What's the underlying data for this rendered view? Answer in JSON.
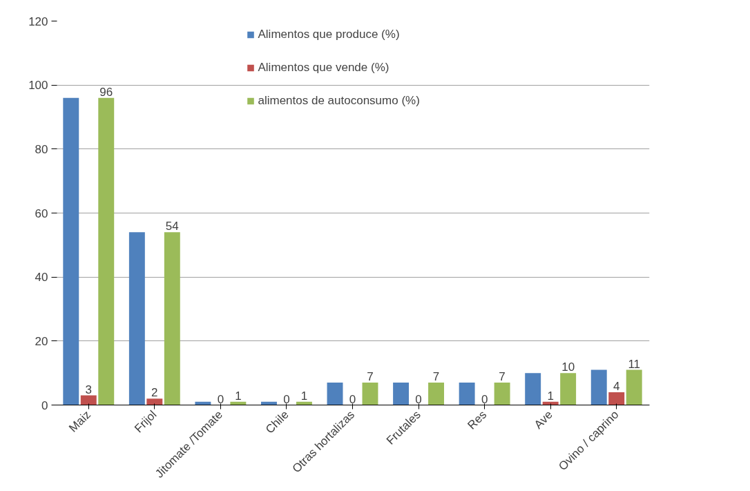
{
  "chart_data": {
    "type": "bar",
    "categories": [
      "Maiz",
      "Frijol",
      "Jitomate /Tomate",
      "Chile",
      "Otras hortalizas",
      "Frutales",
      "Res",
      "Ave",
      "Ovino / caprino"
    ],
    "series": [
      {
        "name": "Alimentos que produce (%)",
        "color": "#4f81bd",
        "values": [
          96,
          54,
          1,
          1,
          7,
          7,
          7,
          10,
          11
        ]
      },
      {
        "name": "Alimentos que vende (%)",
        "color": "#c0504d",
        "values": [
          3,
          2,
          0,
          0,
          0,
          0,
          0,
          1,
          4
        ],
        "value_labels": [
          "3",
          "2",
          "0",
          "0",
          "0",
          "0",
          "0",
          "1",
          "4"
        ]
      },
      {
        "name": "alimentos de autoconsumo (%)",
        "color": "#9bbb59",
        "values": [
          96,
          54,
          1,
          1,
          7,
          7,
          7,
          10,
          11
        ],
        "value_labels": [
          "96",
          "54",
          "1",
          "1",
          "7",
          "7",
          "7",
          "10",
          "11"
        ]
      }
    ],
    "ylim": [
      0,
      120
    ],
    "yticks": [
      0,
      20,
      40,
      60,
      80,
      100,
      120
    ],
    "grid": "y",
    "legend": "top"
  }
}
